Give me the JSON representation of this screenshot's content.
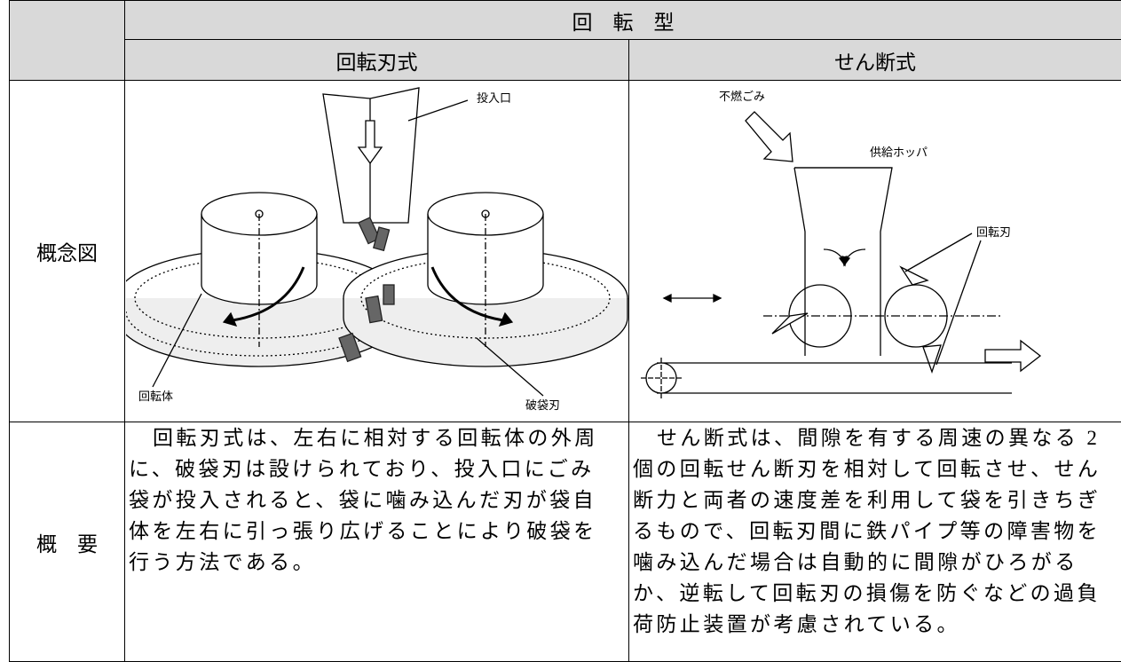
{
  "header": {
    "group": "回　転　型",
    "left": "回転刃式",
    "right": "せん断式"
  },
  "rows": [
    {
      "label": "概念図"
    },
    {
      "label": "概　要"
    }
  ],
  "diagrams": {
    "left": {
      "labels": [
        "投入口",
        "回転体",
        "破袋刃"
      ]
    },
    "right": {
      "labels": [
        "不燃ごみ",
        "供給ホッパ",
        "回転刃"
      ]
    }
  },
  "descriptions": {
    "left": [
      "回転刃式は、左右に相対する回転体の外周",
      "に、破袋刃は設けられており、投入口にごみ",
      "袋が投入されると、袋に噛み込んだ刃が袋自",
      "体を左右に引っ張り広げることにより破袋を",
      "行う方法である。"
    ],
    "right": [
      "せん断式は、間隙を有する周速の異なる 2",
      "個の回転せん断刃を相対して回転させ、せん",
      "断力と両者の速度差を利用して袋を引きちぎ",
      "るもので、回転刃間に鉄パイプ等の障害物を",
      "噛み込んだ場合は自動的に間隙がひろがる",
      "か、逆転して回転刃の損傷を防ぐなどの過負",
      "荷防止装置が考慮されている。"
    ]
  }
}
